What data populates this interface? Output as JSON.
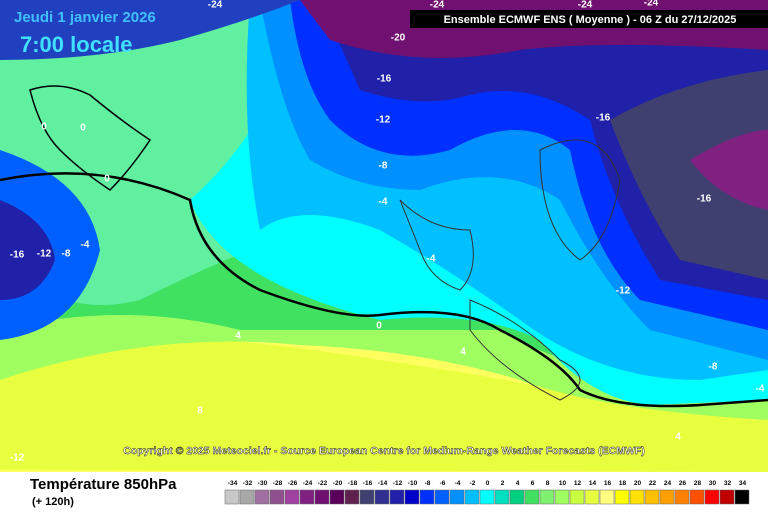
{
  "header": {
    "date": "Jeudi 1 janvier 2026",
    "time": "7:00 locale",
    "model": "Ensemble ECMWF ENS  ( Moyenne )  - 06 Z du 27/12/2025"
  },
  "contour_labels": [
    -24,
    -24,
    -24,
    -24,
    -20,
    -16,
    -12,
    -8,
    -4,
    -16,
    -16,
    -4,
    -12,
    -8,
    -4,
    0,
    4,
    4,
    4,
    8,
    -16,
    -12,
    -8,
    -4,
    0,
    0,
    0,
    -12
  ],
  "copyright": "Copyright © 2025 Meteociel.fr - Source European Centre for Medium-Range Weather Forecasts (ECMWF)",
  "footer": {
    "title": "Température 850hPa",
    "lead": "(+ 120h)"
  },
  "legend": {
    "values": [
      -34,
      -32,
      -30,
      -28,
      -26,
      -24,
      -22,
      -20,
      -18,
      -16,
      -14,
      -12,
      -10,
      -8,
      -6,
      -4,
      -2,
      0,
      2,
      4,
      6,
      8,
      10,
      12,
      14,
      16,
      18,
      20,
      22,
      24,
      26,
      28,
      30,
      32,
      34
    ],
    "colors": [
      "#c8c8c8",
      "#a8a8a8",
      "#a070a0",
      "#905090",
      "#a040a0",
      "#802080",
      "#701070",
      "#5a005a",
      "#602050",
      "#404070",
      "#303090",
      "#2020a8",
      "#0000c8",
      "#0030ff",
      "#0060ff",
      "#0090ff",
      "#00c0ff",
      "#00ffff",
      "#00e0c0",
      "#00d080",
      "#40e060",
      "#80f070",
      "#a0ff60",
      "#c8ff40",
      "#e8ff40",
      "#ffff80",
      "#ffff00",
      "#ffe000",
      "#ffc000",
      "#ffa000",
      "#ff8000",
      "#ff5000",
      "#ff0000",
      "#c00000",
      "#000000"
    ]
  }
}
